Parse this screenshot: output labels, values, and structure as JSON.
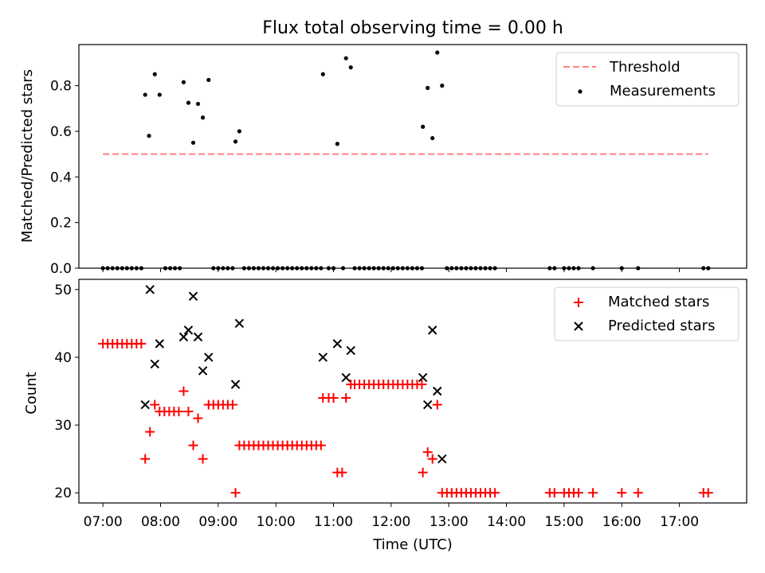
{
  "chart_data": [
    {
      "type": "scatter",
      "title": "Flux total observing time = 0.00 h",
      "xlabel": "",
      "ylabel": "Matched/Predicted stars",
      "xlim": [
        "06:35",
        "18:10"
      ],
      "ylim": [
        0,
        0.98
      ],
      "yticks": [
        "0.0",
        "0.2",
        "0.4",
        "0.6",
        "0.8"
      ],
      "ytick_values": [
        0,
        0.2,
        0.4,
        0.6,
        0.8
      ],
      "grid": false,
      "legend_position": "top-right",
      "threshold": {
        "name": "Threshold",
        "value": 0.5,
        "x_range": [
          "07:00",
          "17:30"
        ],
        "color": "#ff7f7f"
      },
      "series": [
        {
          "name": "Measurements",
          "color": "#000000",
          "marker": "dot",
          "points": [
            [
              "07:00",
              0
            ],
            [
              "07:05",
              0
            ],
            [
              "07:10",
              0
            ],
            [
              "07:15",
              0
            ],
            [
              "07:20",
              0
            ],
            [
              "07:25",
              0
            ],
            [
              "07:30",
              0
            ],
            [
              "07:35",
              0
            ],
            [
              "07:40",
              0
            ],
            [
              "07:44",
              0.76
            ],
            [
              "07:48",
              0.58
            ],
            [
              "07:54",
              0.85
            ],
            [
              "07:59",
              0.76
            ],
            [
              "08:05",
              0
            ],
            [
              "08:10",
              0
            ],
            [
              "08:15",
              0
            ],
            [
              "08:20",
              0
            ],
            [
              "08:24",
              0.815
            ],
            [
              "08:29",
              0.725
            ],
            [
              "08:34",
              0.55
            ],
            [
              "08:39",
              0.72
            ],
            [
              "08:44",
              0.66
            ],
            [
              "08:50",
              0.825
            ],
            [
              "08:55",
              0
            ],
            [
              "09:00",
              0
            ],
            [
              "09:05",
              0
            ],
            [
              "09:10",
              0
            ],
            [
              "09:15",
              0
            ],
            [
              "09:18",
              0.555
            ],
            [
              "09:22",
              0.6
            ],
            [
              "09:27",
              0
            ],
            [
              "09:32",
              0
            ],
            [
              "09:37",
              0
            ],
            [
              "09:42",
              0
            ],
            [
              "09:47",
              0
            ],
            [
              "09:52",
              0
            ],
            [
              "09:57",
              0
            ],
            [
              "10:02",
              0
            ],
            [
              "10:07",
              0
            ],
            [
              "10:12",
              0
            ],
            [
              "10:17",
              0
            ],
            [
              "10:22",
              0
            ],
            [
              "10:27",
              0
            ],
            [
              "10:32",
              0
            ],
            [
              "10:37",
              0
            ],
            [
              "10:42",
              0
            ],
            [
              "10:47",
              0
            ],
            [
              "10:49",
              0.85
            ],
            [
              "10:55",
              0
            ],
            [
              "11:00",
              0
            ],
            [
              "11:04",
              0.545
            ],
            [
              "11:10",
              0
            ],
            [
              "11:13",
              0.92
            ],
            [
              "11:18",
              0.88
            ],
            [
              "11:22",
              0
            ],
            [
              "11:27",
              0
            ],
            [
              "11:32",
              0
            ],
            [
              "11:37",
              0
            ],
            [
              "11:42",
              0
            ],
            [
              "11:47",
              0
            ],
            [
              "11:52",
              0
            ],
            [
              "11:57",
              0
            ],
            [
              "12:02",
              0
            ],
            [
              "12:07",
              0
            ],
            [
              "12:12",
              0
            ],
            [
              "12:17",
              0
            ],
            [
              "12:22",
              0
            ],
            [
              "12:27",
              0
            ],
            [
              "12:32",
              0
            ],
            [
              "12:33",
              0.62
            ],
            [
              "12:38",
              0.79
            ],
            [
              "12:43",
              0.57
            ],
            [
              "12:48",
              0.945
            ],
            [
              "12:53",
              0.8
            ],
            [
              "12:58",
              0
            ],
            [
              "13:03",
              0
            ],
            [
              "13:08",
              0
            ],
            [
              "13:13",
              0
            ],
            [
              "13:18",
              0
            ],
            [
              "13:23",
              0
            ],
            [
              "13:28",
              0
            ],
            [
              "13:33",
              0
            ],
            [
              "13:38",
              0
            ],
            [
              "13:43",
              0
            ],
            [
              "13:48",
              0
            ],
            [
              "14:45",
              0
            ],
            [
              "14:50",
              0
            ],
            [
              "15:00",
              0
            ],
            [
              "15:05",
              0
            ],
            [
              "15:10",
              0
            ],
            [
              "15:15",
              0
            ],
            [
              "15:30",
              0
            ],
            [
              "16:00",
              0
            ],
            [
              "16:17",
              0
            ],
            [
              "17:25",
              0
            ],
            [
              "17:30",
              0
            ]
          ]
        }
      ]
    },
    {
      "type": "scatter",
      "title": "",
      "xlabel": "Time (UTC)",
      "ylabel": "Count",
      "xlim": [
        "06:35",
        "18:10"
      ],
      "ylim": [
        18.5,
        51.5
      ],
      "xticks": [
        "07:00",
        "08:00",
        "09:00",
        "10:00",
        "11:00",
        "12:00",
        "13:00",
        "14:00",
        "15:00",
        "16:00",
        "17:00"
      ],
      "yticks": [
        "20",
        "30",
        "40",
        "50"
      ],
      "ytick_values": [
        20,
        30,
        40,
        50
      ],
      "grid": false,
      "legend_position": "top-right",
      "series": [
        {
          "name": "Matched stars",
          "color": "#ff0000",
          "marker": "plus",
          "points": [
            [
              "07:00",
              42
            ],
            [
              "07:05",
              42
            ],
            [
              "07:10",
              42
            ],
            [
              "07:15",
              42
            ],
            [
              "07:20",
              42
            ],
            [
              "07:25",
              42
            ],
            [
              "07:30",
              42
            ],
            [
              "07:35",
              42
            ],
            [
              "07:40",
              42
            ],
            [
              "07:44",
              25
            ],
            [
              "07:49",
              29
            ],
            [
              "07:54",
              33
            ],
            [
              "07:59",
              32
            ],
            [
              "08:04",
              32
            ],
            [
              "08:09",
              32
            ],
            [
              "08:14",
              32
            ],
            [
              "08:19",
              32
            ],
            [
              "08:24",
              35
            ],
            [
              "08:29",
              32
            ],
            [
              "08:34",
              27
            ],
            [
              "08:39",
              31
            ],
            [
              "08:44",
              25
            ],
            [
              "08:50",
              33
            ],
            [
              "08:55",
              33
            ],
            [
              "09:00",
              33
            ],
            [
              "09:05",
              33
            ],
            [
              "09:10",
              33
            ],
            [
              "09:15",
              33
            ],
            [
              "09:18",
              20
            ],
            [
              "09:22",
              27
            ],
            [
              "09:27",
              27
            ],
            [
              "09:32",
              27
            ],
            [
              "09:37",
              27
            ],
            [
              "09:42",
              27
            ],
            [
              "09:47",
              27
            ],
            [
              "09:52",
              27
            ],
            [
              "09:57",
              27
            ],
            [
              "10:02",
              27
            ],
            [
              "10:07",
              27
            ],
            [
              "10:12",
              27
            ],
            [
              "10:17",
              27
            ],
            [
              "10:22",
              27
            ],
            [
              "10:27",
              27
            ],
            [
              "10:32",
              27
            ],
            [
              "10:37",
              27
            ],
            [
              "10:42",
              27
            ],
            [
              "10:47",
              27
            ],
            [
              "10:49",
              34
            ],
            [
              "10:55",
              34
            ],
            [
              "11:00",
              34
            ],
            [
              "11:04",
              23
            ],
            [
              "11:09",
              23
            ],
            [
              "11:13",
              34
            ],
            [
              "11:18",
              36
            ],
            [
              "11:22",
              36
            ],
            [
              "11:27",
              36
            ],
            [
              "11:32",
              36
            ],
            [
              "11:37",
              36
            ],
            [
              "11:42",
              36
            ],
            [
              "11:47",
              36
            ],
            [
              "11:52",
              36
            ],
            [
              "11:57",
              36
            ],
            [
              "12:02",
              36
            ],
            [
              "12:07",
              36
            ],
            [
              "12:12",
              36
            ],
            [
              "12:17",
              36
            ],
            [
              "12:22",
              36
            ],
            [
              "12:27",
              36
            ],
            [
              "12:32",
              36
            ],
            [
              "12:33",
              23
            ],
            [
              "12:38",
              26
            ],
            [
              "12:43",
              25
            ],
            [
              "12:48",
              33
            ],
            [
              "12:53",
              20
            ],
            [
              "12:58",
              20
            ],
            [
              "13:03",
              20
            ],
            [
              "13:08",
              20
            ],
            [
              "13:13",
              20
            ],
            [
              "13:18",
              20
            ],
            [
              "13:23",
              20
            ],
            [
              "13:28",
              20
            ],
            [
              "13:33",
              20
            ],
            [
              "13:38",
              20
            ],
            [
              "13:43",
              20
            ],
            [
              "13:48",
              20
            ],
            [
              "14:45",
              20
            ],
            [
              "14:50",
              20
            ],
            [
              "15:00",
              20
            ],
            [
              "15:05",
              20
            ],
            [
              "15:10",
              20
            ],
            [
              "15:15",
              20
            ],
            [
              "15:30",
              20
            ],
            [
              "16:00",
              20
            ],
            [
              "16:17",
              20
            ],
            [
              "17:25",
              20
            ],
            [
              "17:30",
              20
            ]
          ]
        },
        {
          "name": "Predicted stars",
          "color": "#000000",
          "marker": "x",
          "points": [
            [
              "07:44",
              33
            ],
            [
              "07:49",
              50
            ],
            [
              "07:54",
              39
            ],
            [
              "07:59",
              42
            ],
            [
              "08:24",
              43
            ],
            [
              "08:29",
              44
            ],
            [
              "08:34",
              49
            ],
            [
              "08:39",
              43
            ],
            [
              "08:44",
              38
            ],
            [
              "08:50",
              40
            ],
            [
              "09:18",
              36
            ],
            [
              "09:22",
              45
            ],
            [
              "10:49",
              40
            ],
            [
              "11:04",
              42
            ],
            [
              "11:13",
              37
            ],
            [
              "11:18",
              41
            ],
            [
              "12:33",
              37
            ],
            [
              "12:38",
              33
            ],
            [
              "12:43",
              44
            ],
            [
              "12:48",
              35
            ],
            [
              "12:53",
              25
            ]
          ]
        }
      ]
    }
  ]
}
